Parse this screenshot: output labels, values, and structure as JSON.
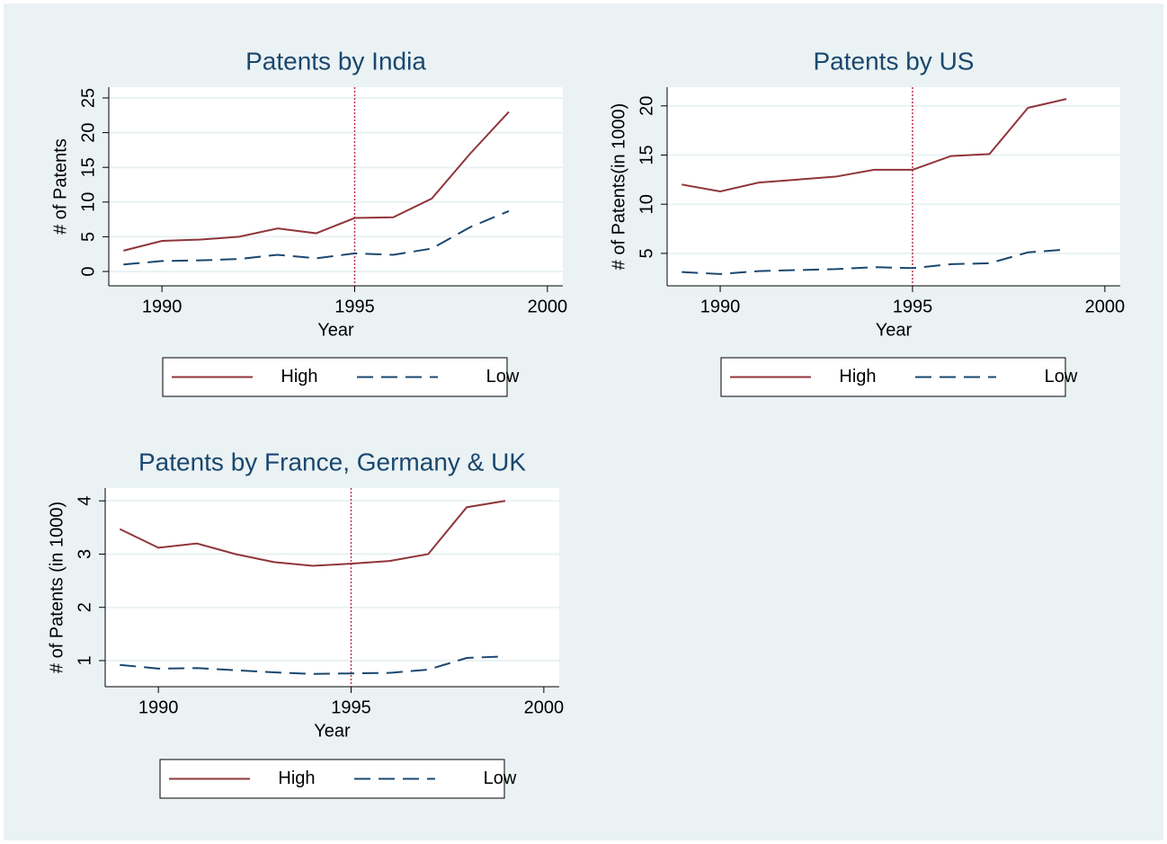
{
  "chart_data": [
    {
      "type": "line",
      "title": "Patents by India",
      "x_label": "Year",
      "y_label": "# of Patents",
      "x": [
        1989,
        1990,
        1991,
        1992,
        1993,
        1994,
        1995,
        1996,
        1997,
        1998,
        1999
      ],
      "series": [
        {
          "name": "High",
          "color": "#90353b",
          "style": "solid",
          "values": [
            3,
            4.4,
            4.6,
            5,
            6.2,
            5.5,
            7.7,
            7.8,
            10.5,
            17,
            23
          ]
        },
        {
          "name": "Low",
          "color": "#1a476f",
          "style": "dashed",
          "values": [
            1.0,
            1.5,
            1.6,
            1.8,
            2.4,
            1.9,
            2.6,
            2.4,
            3.3,
            6.4,
            8.7
          ]
        }
      ],
      "xlim": [
        1988.62,
        2000.4
      ],
      "xticks": [
        1990,
        1995,
        2000
      ],
      "ylim": [
        -2.07,
        26.55
      ],
      "yticks": [
        0,
        5,
        10,
        15,
        20,
        25
      ],
      "vline": 1995,
      "grid": true
    },
    {
      "type": "line",
      "title": "Patents by US",
      "x_label": "Year",
      "y_label": "# of Patents(in 1000)",
      "x": [
        1989,
        1990,
        1991,
        1992,
        1993,
        1994,
        1995,
        1996,
        1997,
        1998,
        1999
      ],
      "series": [
        {
          "name": "High",
          "color": "#90353b",
          "style": "solid",
          "values": [
            12,
            11.3,
            12.2,
            12.5,
            12.8,
            13.5,
            13.5,
            14.9,
            15.1,
            19.8,
            20.7
          ]
        },
        {
          "name": "Low",
          "color": "#1a476f",
          "style": "dashed",
          "values": [
            3.1,
            2.9,
            3.2,
            3.3,
            3.4,
            3.6,
            3.5,
            3.9,
            4.0,
            5.1,
            5.4
          ]
        }
      ],
      "xlim": [
        1988.62,
        2000.4
      ],
      "xticks": [
        1990,
        1995,
        2000
      ],
      "ylim": [
        1.7,
        21.9
      ],
      "yticks": [
        5,
        10,
        15,
        20
      ],
      "vline": 1995,
      "grid": true
    },
    {
      "type": "line",
      "title": "Patents by France, Germany & UK",
      "x_label": "Year",
      "y_label": "# of Patents (in 1000)",
      "x": [
        1989,
        1990,
        1991,
        1992,
        1993,
        1994,
        1995,
        1996,
        1997,
        1998,
        1999
      ],
      "series": [
        {
          "name": "High",
          "color": "#90353b",
          "style": "solid",
          "values": [
            3.47,
            3.12,
            3.2,
            3.0,
            2.85,
            2.78,
            2.82,
            2.87,
            3.0,
            3.88,
            4.0
          ]
        },
        {
          "name": "Low",
          "color": "#1a476f",
          "style": "dashed",
          "values": [
            0.92,
            0.85,
            0.86,
            0.82,
            0.78,
            0.75,
            0.76,
            0.77,
            0.83,
            1.05,
            1.08
          ]
        }
      ],
      "xlim": [
        1988.62,
        2000.4
      ],
      "xticks": [
        1990,
        1995,
        2000
      ],
      "ylim": [
        0.51,
        4.24
      ],
      "yticks": [
        1,
        2,
        3,
        4
      ],
      "vline": 1995,
      "grid": true
    }
  ]
}
